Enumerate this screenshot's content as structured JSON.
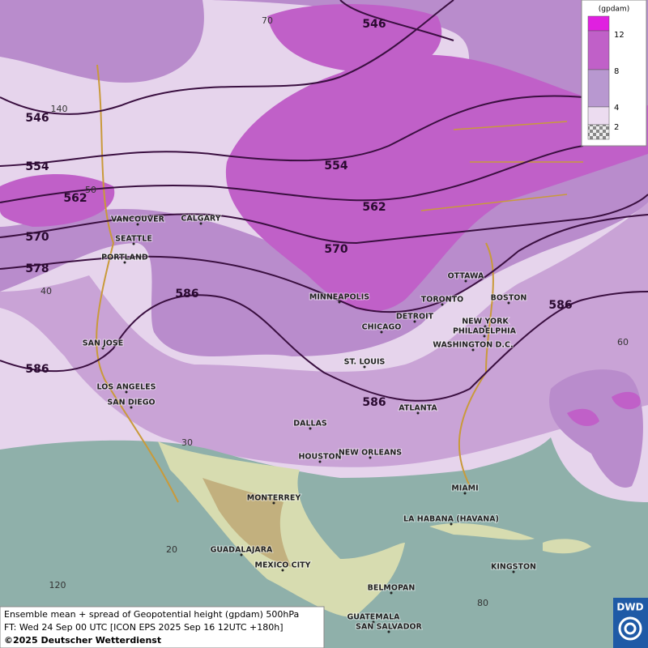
{
  "contour_labels": [
    546,
    546,
    554,
    554,
    562,
    562,
    570,
    570,
    578,
    586,
    586,
    586,
    586
  ],
  "graticule": [
    "70",
    "140",
    "50",
    "40",
    "30",
    "20",
    "120",
    "60",
    "80"
  ],
  "cities": [
    "VANCOUVER",
    "CALGARY",
    "SEATTLE",
    "PORTLAND",
    "MINNEAPOLIS",
    "OTTAWA",
    "TORONTO",
    "BOSTON",
    "DETROIT",
    "NEW YORK",
    "CHICAGO",
    "PHILADELPHIA",
    "WASHINGTON D.C.",
    "SAN JOSE",
    "ST. LOUIS",
    "LOS ANGELES",
    "SAN DIEGO",
    "ATLANTA",
    "DALLAS",
    "HOUSTON",
    "NEW ORLEANS",
    "MIAMI",
    "MONTERREY",
    "LA HABANA (HAVANA)",
    "GUADALAJARA",
    "MEXICO CITY",
    "KINGSTON",
    "BELMOPAN",
    "GUATEMALA",
    "SAN SALVADOR"
  ],
  "legend": {
    "unit": "(gpdam)",
    "levels": [
      12,
      8,
      4,
      2
    ]
  },
  "footer": {
    "line1": "Ensemble mean + spread of Geopotential height (gpdam) 500hPa",
    "line2": "FT: Wed 24 Sep 00 UTC [ICON EPS 2025 Sep 16 12UTC +180h]",
    "line3": "©2025 Deutscher Wetterdienst"
  },
  "logo": "DWD"
}
